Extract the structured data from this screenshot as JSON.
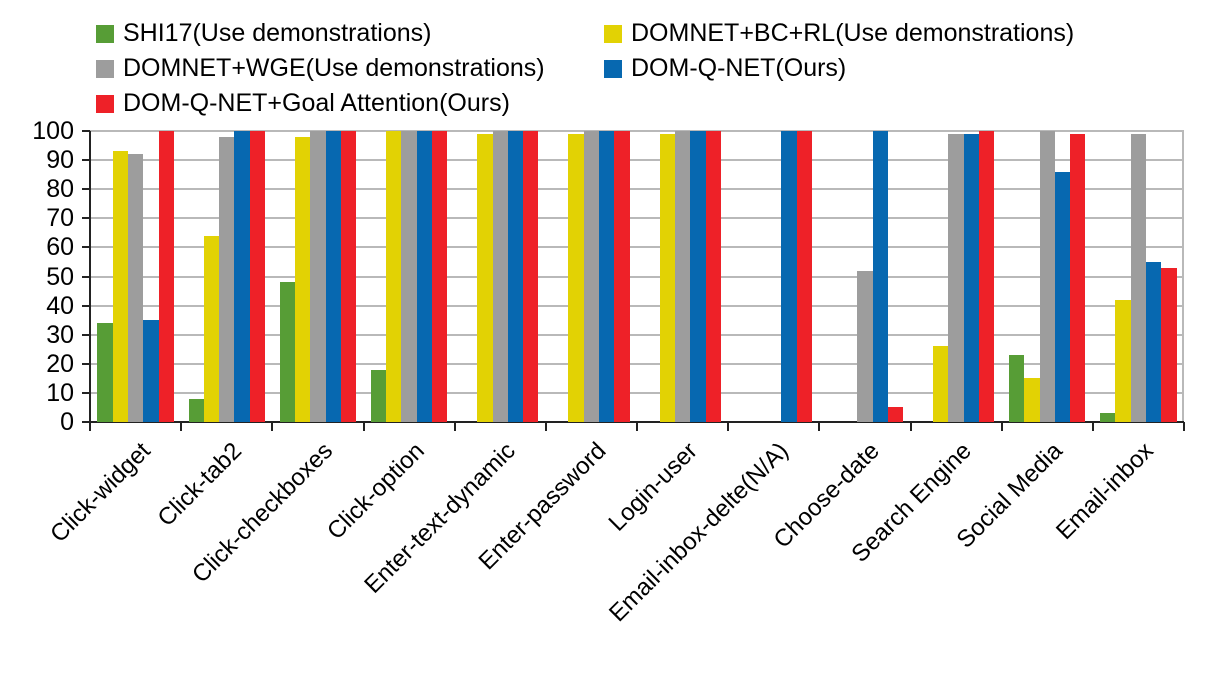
{
  "chart_data": {
    "type": "bar",
    "title": "",
    "xlabel": "",
    "ylabel": "",
    "ylim": [
      0,
      100
    ],
    "yticks": [
      0,
      10,
      20,
      30,
      40,
      50,
      60,
      70,
      80,
      90,
      100
    ],
    "grid": true,
    "legend_position": "top",
    "categories": [
      "Click-widget",
      "Click-tab2",
      "Click-checkboxes",
      "Click-option",
      "Enter-text-dynamic",
      "Enter-password",
      "Login-user",
      "Email-inbox-delte(N/A)",
      "Choose-date",
      "Search Engine",
      "Social Media",
      "Email-inbox"
    ],
    "series": [
      {
        "name": "SHI17(Use demonstrations)",
        "color": "#579D36",
        "values": [
          34,
          8,
          48,
          18,
          null,
          null,
          null,
          null,
          null,
          null,
          23,
          3
        ]
      },
      {
        "name": "DOMNET+BC+RL(Use demonstrations)",
        "color": "#E2D204",
        "values": [
          93,
          64,
          98,
          100,
          99,
          99,
          99,
          null,
          null,
          26,
          15,
          42
        ]
      },
      {
        "name": "DOMNET+WGE(Use demonstrations)",
        "color": "#9D9D9D",
        "values": [
          92,
          98,
          100,
          100,
          100,
          100,
          100,
          null,
          52,
          99,
          100,
          99
        ]
      },
      {
        "name": "DOM-Q-NET(Ours)",
        "color": "#0768B0",
        "values": [
          35,
          100,
          100,
          100,
          100,
          100,
          100,
          100,
          100,
          99,
          86,
          55
        ]
      },
      {
        "name": "DOM-Q-NET+Goal Attention(Ours)",
        "color": "#EE2128",
        "values": [
          100,
          100,
          100,
          100,
          100,
          100,
          100,
          100,
          5,
          100,
          99,
          53
        ]
      }
    ]
  }
}
